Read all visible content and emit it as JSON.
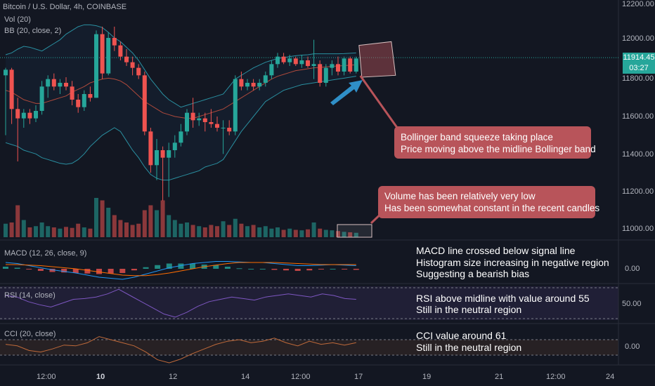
{
  "header": {
    "symbol_line": "Bitcoin / U.S. Dollar, 4h, COINBASE",
    "volume_indicator": "Vol (20)",
    "bb_indicator": "BB (20, close, 2)"
  },
  "price_axis": {
    "ticks": [
      "12200.00",
      "12000.00",
      "11800.00",
      "11600.00",
      "11400.00",
      "11200.00",
      "11000.00"
    ],
    "current_price": "11914.45",
    "countdown": "03:27"
  },
  "panes": {
    "macd": {
      "label": "MACD (12, 26, close, 9)",
      "tick": "0.00"
    },
    "rsi": {
      "label": "RSI (14, close)",
      "tick": "50.00"
    },
    "cci": {
      "label": "CCI (20, close)",
      "tick": "0.00"
    }
  },
  "time_axis": [
    "12:00",
    "10",
    "12",
    "14",
    "12:00",
    "17",
    "19",
    "21",
    "12:00",
    "24"
  ],
  "annotations": {
    "bollinger": {
      "line1": "Bollinger band squeeze taking place",
      "line2": "Price moving above the midline Bollinger band"
    },
    "volume": {
      "line1": "Volume has been relatively very low",
      "line2": "Has been somewhat constant in the recent candles"
    },
    "macd": {
      "line1": "MACD line crossed below signal line",
      "line2": "Histogram size increasing in negative region",
      "line3": "Suggesting a bearish bias"
    },
    "rsi": {
      "line1": "RSI above midline with value around 55",
      "line2": "Still in the neutral region"
    },
    "cci": {
      "line1": "CCI value around 61",
      "line2": "Still in the neutral region"
    }
  },
  "colors": {
    "up": "#26a69a",
    "down": "#ef5350",
    "bb_band": "#2a8fa0",
    "bb_mid": "#b04a3c",
    "callout": "#b8545a",
    "rsi": "#7e57c2",
    "cci": "#c06a3a",
    "macd_line": "#2196f3",
    "signal_line": "#ff6d00"
  },
  "chart_data": {
    "type": "candlestick",
    "timeframe": "4h",
    "ylim": [
      10930,
      12220
    ],
    "candles": [
      {
        "o": 11820,
        "h": 11860,
        "l": 11500,
        "c": 11850
      },
      {
        "o": 11850,
        "h": 11860,
        "l": 11560,
        "c": 11640
      },
      {
        "o": 11640,
        "h": 11700,
        "l": 11360,
        "c": 11590
      },
      {
        "o": 11590,
        "h": 11640,
        "l": 11540,
        "c": 11620
      },
      {
        "o": 11620,
        "h": 11640,
        "l": 11560,
        "c": 11590
      },
      {
        "o": 11590,
        "h": 11660,
        "l": 11570,
        "c": 11630
      },
      {
        "o": 11630,
        "h": 11790,
        "l": 11610,
        "c": 11760
      },
      {
        "o": 11760,
        "h": 11820,
        "l": 11700,
        "c": 11800
      },
      {
        "o": 11800,
        "h": 11830,
        "l": 11740,
        "c": 11760
      },
      {
        "o": 11760,
        "h": 11800,
        "l": 11720,
        "c": 11780
      },
      {
        "o": 11780,
        "h": 11810,
        "l": 11740,
        "c": 11760
      },
      {
        "o": 11760,
        "h": 11790,
        "l": 11660,
        "c": 11690
      },
      {
        "o": 11690,
        "h": 11720,
        "l": 11620,
        "c": 11650
      },
      {
        "o": 11650,
        "h": 11740,
        "l": 11630,
        "c": 11720
      },
      {
        "o": 11720,
        "h": 11760,
        "l": 11680,
        "c": 11700
      },
      {
        "o": 11700,
        "h": 12060,
        "l": 11700,
        "c": 12040
      },
      {
        "o": 12040,
        "h": 12080,
        "l": 11800,
        "c": 11830
      },
      {
        "o": 11830,
        "h": 12050,
        "l": 11820,
        "c": 12020
      },
      {
        "o": 12020,
        "h": 12080,
        "l": 11950,
        "c": 11980
      },
      {
        "o": 11980,
        "h": 12000,
        "l": 11900,
        "c": 11920
      },
      {
        "o": 11920,
        "h": 11960,
        "l": 11870,
        "c": 11890
      },
      {
        "o": 11890,
        "h": 11920,
        "l": 11820,
        "c": 11860
      },
      {
        "o": 11860,
        "h": 11880,
        "l": 11800,
        "c": 11820
      },
      {
        "o": 11820,
        "h": 11840,
        "l": 11500,
        "c": 11520
      },
      {
        "o": 11520,
        "h": 11540,
        "l": 11300,
        "c": 11340
      },
      {
        "o": 11340,
        "h": 11480,
        "l": 11260,
        "c": 11420
      },
      {
        "o": 11420,
        "h": 11440,
        "l": 11150,
        "c": 11380
      },
      {
        "o": 11380,
        "h": 11460,
        "l": 11170,
        "c": 11420
      },
      {
        "o": 11420,
        "h": 11500,
        "l": 11380,
        "c": 11460
      },
      {
        "o": 11460,
        "h": 11560,
        "l": 11440,
        "c": 11520
      },
      {
        "o": 11520,
        "h": 11640,
        "l": 11500,
        "c": 11620
      },
      {
        "o": 11620,
        "h": 11700,
        "l": 11540,
        "c": 11580
      },
      {
        "o": 11580,
        "h": 11620,
        "l": 11550,
        "c": 11590
      },
      {
        "o": 11590,
        "h": 11620,
        "l": 11520,
        "c": 11570
      },
      {
        "o": 11570,
        "h": 11640,
        "l": 11540,
        "c": 11560
      },
      {
        "o": 11560,
        "h": 11600,
        "l": 11520,
        "c": 11540
      },
      {
        "o": 11540,
        "h": 11580,
        "l": 11400,
        "c": 11540
      },
      {
        "o": 11540,
        "h": 11580,
        "l": 11500,
        "c": 11520
      },
      {
        "o": 11520,
        "h": 11820,
        "l": 11500,
        "c": 11800
      },
      {
        "o": 11800,
        "h": 11840,
        "l": 11740,
        "c": 11760
      },
      {
        "o": 11760,
        "h": 11800,
        "l": 11740,
        "c": 11780
      },
      {
        "o": 11780,
        "h": 11800,
        "l": 11740,
        "c": 11760
      },
      {
        "o": 11760,
        "h": 11800,
        "l": 11740,
        "c": 11780
      },
      {
        "o": 11780,
        "h": 11840,
        "l": 11760,
        "c": 11820
      },
      {
        "o": 11820,
        "h": 11900,
        "l": 11800,
        "c": 11880
      },
      {
        "o": 11880,
        "h": 11940,
        "l": 11860,
        "c": 11920
      },
      {
        "o": 11920,
        "h": 11940,
        "l": 11880,
        "c": 11890
      },
      {
        "o": 11890,
        "h": 11930,
        "l": 11870,
        "c": 11910
      },
      {
        "o": 11910,
        "h": 11920,
        "l": 11870,
        "c": 11880
      },
      {
        "o": 11880,
        "h": 11930,
        "l": 11860,
        "c": 11900
      },
      {
        "o": 11900,
        "h": 11920,
        "l": 11860,
        "c": 11870
      },
      {
        "o": 11870,
        "h": 12010,
        "l": 11800,
        "c": 11880
      },
      {
        "o": 11880,
        "h": 11900,
        "l": 11760,
        "c": 11780
      },
      {
        "o": 11780,
        "h": 11880,
        "l": 11760,
        "c": 11860
      },
      {
        "o": 11860,
        "h": 11900,
        "l": 11820,
        "c": 11880
      },
      {
        "o": 11880,
        "h": 11920,
        "l": 11820,
        "c": 11840
      },
      {
        "o": 11840,
        "h": 11920,
        "l": 11820,
        "c": 11910
      },
      {
        "o": 11910,
        "h": 11920,
        "l": 11830,
        "c": 11840
      },
      {
        "o": 11840,
        "h": 11920,
        "l": 11830,
        "c": 11910
      }
    ],
    "volume": [
      55,
      60,
      130,
      70,
      40,
      45,
      60,
      45,
      40,
      35,
      42,
      38,
      55,
      40,
      35,
      160,
      150,
      120,
      90,
      70,
      60,
      50,
      55,
      110,
      130,
      110,
      150,
      90,
      70,
      55,
      60,
      50,
      45,
      40,
      50,
      45,
      65,
      50,
      75,
      55,
      45,
      50,
      40,
      45,
      35,
      40,
      30,
      35,
      30,
      28,
      32,
      60,
      35,
      30,
      28,
      25,
      22,
      20,
      18
    ],
    "bb_upper": [
      11930,
      11940,
      11960,
      11975,
      11970,
      11960,
      11950,
      11970,
      11990,
      12010,
      12040,
      12060,
      12080,
      12090,
      12090,
      12085,
      12075,
      12050,
      12020,
      12000,
      11970,
      11940,
      11900,
      11850,
      11800,
      11760,
      11720,
      11690,
      11670,
      11650,
      11660,
      11670,
      11680,
      11690,
      11700,
      11710,
      11720,
      11760,
      11800,
      11820,
      11840,
      11860,
      11875,
      11890,
      11900,
      11910,
      11915,
      11920,
      11925,
      11928,
      11930,
      11935,
      11935,
      11935,
      11935,
      11935,
      11936,
      11938,
      11940
    ],
    "bb_middle": [
      11740,
      11730,
      11710,
      11690,
      11680,
      11670,
      11670,
      11680,
      11690,
      11700,
      11710,
      11730,
      11745,
      11760,
      11780,
      11790,
      11800,
      11805,
      11800,
      11790,
      11770,
      11740,
      11710,
      11680,
      11660,
      11640,
      11620,
      11610,
      11600,
      11595,
      11590,
      11590,
      11600,
      11610,
      11620,
      11630,
      11640,
      11660,
      11680,
      11700,
      11720,
      11740,
      11760,
      11780,
      11800,
      11815,
      11825,
      11835,
      11845,
      11850,
      11855,
      11860,
      11862,
      11865,
      11868,
      11870,
      11872,
      11874,
      11876
    ],
    "bb_lower": [
      11460,
      11450,
      11440,
      11420,
      11410,
      11400,
      11380,
      11370,
      11360,
      11350,
      11345,
      11350,
      11370,
      11400,
      11440,
      11470,
      11500,
      11520,
      11540,
      11520,
      11470,
      11420,
      11380,
      11330,
      11290,
      11270,
      11260,
      11260,
      11270,
      11280,
      11290,
      11300,
      11310,
      11330,
      11340,
      11350,
      11370,
      11420,
      11470,
      11520,
      11560,
      11600,
      11640,
      11680,
      11700,
      11720,
      11740,
      11750,
      11760,
      11770,
      11775,
      11780,
      11785,
      11790,
      11795,
      11800,
      11805,
      11810,
      11815
    ],
    "indicators": {
      "macd": {
        "line": [
          12,
          10,
          6,
          2,
          -2,
          -5,
          -8,
          -12,
          -16,
          -18,
          -20,
          -16,
          -10,
          -4,
          2,
          6,
          10,
          12,
          14,
          14,
          13,
          12,
          12,
          10,
          8,
          6,
          6,
          7,
          8,
          7,
          6
        ],
        "signal": [
          8,
          8,
          7,
          6,
          4,
          2,
          0,
          -3,
          -6,
          -9,
          -12,
          -13,
          -13,
          -11,
          -8,
          -4,
          0,
          4,
          7,
          10,
          12,
          12,
          12,
          12,
          11,
          10,
          9,
          8,
          8,
          8,
          8
        ],
        "histogram": [
          4,
          2,
          -1,
          -4,
          -6,
          -7,
          -8,
          -9,
          -10,
          -9,
          -8,
          -3,
          3,
          7,
          10,
          10,
          10,
          8,
          7,
          4,
          1,
          0,
          0,
          -2,
          -3,
          -4,
          -3,
          -1,
          0,
          -1,
          -2
        ]
      },
      "rsi": [
        60,
        58,
        52,
        48,
        45,
        50,
        55,
        56,
        58,
        62,
        68,
        60,
        52,
        44,
        36,
        32,
        38,
        46,
        52,
        55,
        58,
        56,
        54,
        58,
        60,
        62,
        60,
        58,
        62,
        60,
        56,
        55
      ],
      "cci": [
        40,
        20,
        -40,
        -60,
        -20,
        30,
        20,
        60,
        140,
        100,
        60,
        20,
        -60,
        -160,
        -200,
        -150,
        -80,
        -20,
        40,
        80,
        100,
        60,
        80,
        120,
        60,
        20,
        80,
        40,
        60,
        30,
        61
      ]
    },
    "annotation_values": {
      "rsi_latest": 55,
      "cci_latest": 61
    }
  }
}
